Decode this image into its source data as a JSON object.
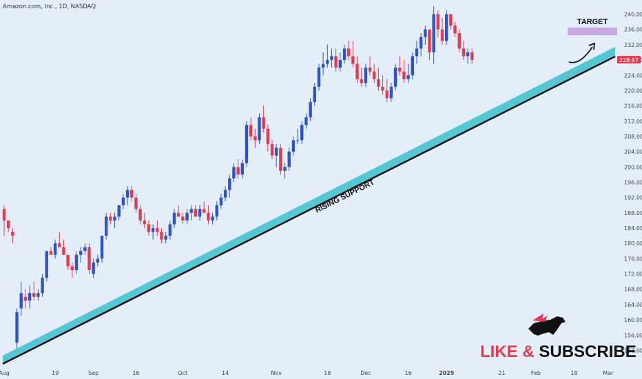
{
  "header": {
    "symbol_text": "Amazon.com, Inc., 1D, NASDAQ"
  },
  "price_badge": {
    "value": "228.67",
    "color": "#e8384f"
  },
  "colors": {
    "up": "#2e54c8",
    "down": "#e8384f",
    "background": "#e3eef9",
    "support_band": "#55c6d3",
    "target_box": "#c8a8e0"
  },
  "chart_data": {
    "type": "candlestick",
    "title": "",
    "y_axis": {
      "side": "right",
      "range": [
        150,
        242
      ],
      "ticks": [
        152,
        156,
        160,
        164,
        168,
        172,
        176,
        180,
        184,
        188,
        192,
        196,
        200,
        204,
        208,
        212,
        216,
        220,
        224,
        228,
        232,
        236,
        240
      ]
    },
    "x_axis": {
      "tick_labels": [
        "Aug",
        "19",
        "Sep",
        "16",
        "Oct",
        "14",
        "Nov",
        "18",
        "Dec",
        "16",
        "2025",
        "21",
        "Feb",
        "18",
        "Mar"
      ],
      "tick_trading_index": [
        0,
        12,
        21,
        31,
        42,
        52,
        64,
        76,
        85,
        95,
        104,
        117,
        125,
        134,
        142
      ]
    },
    "candles_ohlc": [
      [
        189,
        190,
        182,
        186
      ],
      [
        186,
        186,
        183,
        184
      ],
      [
        183,
        184,
        180,
        182
      ],
      [
        154,
        163,
        152,
        162
      ],
      [
        163,
        170,
        161,
        167
      ],
      [
        166,
        168,
        163,
        165
      ],
      [
        165,
        169,
        163,
        167
      ],
      [
        167,
        170,
        165,
        166
      ],
      [
        166,
        168,
        165,
        167
      ],
      [
        167,
        172,
        166,
        171
      ],
      [
        171,
        178,
        170,
        178
      ],
      [
        178,
        179,
        177,
        177
      ],
      [
        177,
        181,
        176,
        180
      ],
      [
        180,
        183,
        179,
        179
      ],
      [
        179,
        181,
        177,
        177
      ],
      [
        177,
        177,
        173,
        174
      ],
      [
        174,
        175,
        171,
        173
      ],
      [
        173,
        178,
        172,
        177
      ],
      [
        177,
        179,
        175,
        178
      ],
      [
        178,
        180,
        177,
        179
      ],
      [
        179,
        180,
        172,
        173
      ],
      [
        172,
        176,
        171,
        175
      ],
      [
        175,
        177,
        174,
        176
      ],
      [
        176,
        182,
        175,
        182
      ],
      [
        182,
        188,
        181,
        187
      ],
      [
        187,
        188,
        185,
        186
      ],
      [
        186,
        188,
        184,
        187
      ],
      [
        187,
        190,
        186,
        190
      ],
      [
        190,
        193,
        189,
        192
      ],
      [
        192,
        195,
        190,
        194
      ],
      [
        194,
        195,
        191,
        192
      ],
      [
        192,
        193,
        188,
        189
      ],
      [
        189,
        190,
        185,
        186
      ],
      [
        186,
        188,
        184,
        185
      ],
      [
        185,
        186,
        182,
        183
      ],
      [
        183,
        185,
        181,
        184
      ],
      [
        184,
        186,
        182,
        183
      ],
      [
        183,
        184,
        180,
        181
      ],
      [
        181,
        183,
        180,
        182
      ],
      [
        182,
        186,
        181,
        185
      ],
      [
        185,
        189,
        184,
        188
      ],
      [
        188,
        190,
        187,
        187
      ],
      [
        187,
        188,
        185,
        186
      ],
      [
        186,
        189,
        185,
        188
      ],
      [
        188,
        190,
        186,
        189
      ],
      [
        189,
        190,
        187,
        187
      ],
      [
        187,
        190,
        186,
        189
      ],
      [
        189,
        191,
        188,
        188
      ],
      [
        188,
        190,
        185,
        186
      ],
      [
        186,
        188,
        185,
        187
      ],
      [
        187,
        191,
        186,
        190
      ],
      [
        190,
        193,
        189,
        192
      ],
      [
        192,
        195,
        191,
        194
      ],
      [
        194,
        198,
        192,
        197
      ],
      [
        197,
        201,
        196,
        200
      ],
      [
        200,
        202,
        197,
        198
      ],
      [
        198,
        202,
        197,
        201
      ],
      [
        201,
        212,
        200,
        211
      ],
      [
        211,
        213,
        207,
        208
      ],
      [
        208,
        210,
        205,
        207
      ],
      [
        207,
        214,
        206,
        213
      ],
      [
        213,
        216,
        209,
        210
      ],
      [
        210,
        211,
        204,
        206
      ],
      [
        206,
        207,
        202,
        203
      ],
      [
        203,
        206,
        200,
        205
      ],
      [
        205,
        206,
        198,
        199
      ],
      [
        199,
        201,
        197,
        200
      ],
      [
        200,
        205,
        199,
        204
      ],
      [
        204,
        208,
        203,
        207
      ],
      [
        207,
        210,
        206,
        207
      ],
      [
        207,
        212,
        206,
        211
      ],
      [
        211,
        214,
        210,
        213
      ],
      [
        213,
        218,
        212,
        217
      ],
      [
        217,
        222,
        216,
        221
      ],
      [
        221,
        227,
        220,
        226
      ],
      [
        226,
        230,
        224,
        227
      ],
      [
        227,
        232,
        226,
        228
      ],
      [
        228,
        231,
        226,
        229
      ],
      [
        229,
        231,
        225,
        226
      ],
      [
        226,
        230,
        225,
        228
      ],
      [
        228,
        232,
        227,
        231
      ],
      [
        231,
        233,
        228,
        229
      ],
      [
        229,
        233,
        226,
        227
      ],
      [
        227,
        229,
        222,
        223
      ],
      [
        223,
        226,
        221,
        222
      ],
      [
        222,
        227,
        221,
        226
      ],
      [
        226,
        229,
        224,
        225
      ],
      [
        225,
        227,
        222,
        223
      ],
      [
        223,
        226,
        220,
        221
      ],
      [
        221,
        224,
        219,
        220
      ],
      [
        220,
        223,
        217,
        218
      ],
      [
        218,
        222,
        217,
        221
      ],
      [
        221,
        227,
        220,
        226
      ],
      [
        226,
        229,
        224,
        225
      ],
      [
        225,
        228,
        222,
        223
      ],
      [
        223,
        227,
        222,
        224
      ],
      [
        224,
        230,
        223,
        229
      ],
      [
        229,
        233,
        227,
        231
      ],
      [
        231,
        235,
        229,
        234
      ],
      [
        234,
        237,
        232,
        236
      ],
      [
        236,
        233,
        228,
        230
      ],
      [
        230,
        242,
        227,
        240
      ],
      [
        240,
        241,
        234,
        236
      ],
      [
        236,
        239,
        232,
        233
      ],
      [
        233,
        241,
        232,
        240
      ],
      [
        240,
        240,
        236,
        237
      ],
      [
        237,
        238,
        234,
        235
      ],
      [
        235,
        236,
        230,
        231
      ],
      [
        231,
        233,
        228,
        229
      ],
      [
        229,
        231,
        227,
        230
      ],
      [
        230,
        231,
        227,
        228
      ]
    ],
    "target_label": "TARGET",
    "trendline_label": "RISING SUPPORT",
    "target_zone": [
      234.5,
      236.5
    ]
  },
  "watermark": {
    "line": "LIKE & SUBSCRIBE",
    "like": "LIKE",
    "amp": "&",
    "subscribe": "SUBSCRIBE"
  }
}
